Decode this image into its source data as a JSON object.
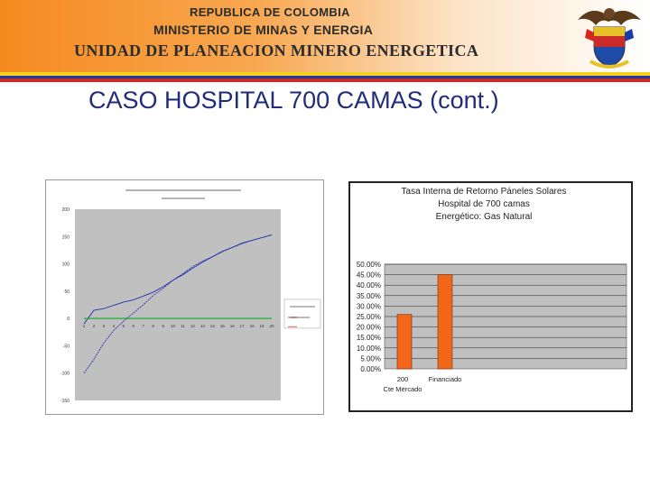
{
  "header": {
    "line1": "REPUBLICA DE COLOMBIA",
    "line2": "MINISTERIO DE MINAS Y ENERGIA",
    "line3": "UNIDAD DE PLANEACION MINERO ENERGETICA",
    "colors": {
      "band_orange": "#f58a1f",
      "stripe_yellow": "#f2d21a",
      "stripe_blue": "#1c3aa6",
      "stripe_red": "#d6271e"
    },
    "crest_icon": "colombia-coat-of-arms-icon"
  },
  "slide_title": "CASO HOSPITAL 700 CAMAS (cont.)",
  "chart_data": [
    {
      "type": "line",
      "title": "",
      "ylabel": "",
      "xlabel": "",
      "x": [
        1,
        2,
        3,
        4,
        5,
        6,
        7,
        8,
        9,
        10,
        11,
        12,
        13,
        14,
        15,
        16,
        17,
        18,
        19,
        20
      ],
      "ylim": [
        -150,
        200
      ],
      "yticks": [
        -150,
        -100,
        -50,
        0,
        50,
        100,
        150,
        200
      ],
      "ytick_labels": [
        "-150",
        "-100",
        "-50",
        "0",
        "50",
        "100",
        "150",
        "200"
      ],
      "series": [
        {
          "name": "",
          "color": "#2233aa",
          "values": [
            -100,
            -75,
            -45,
            -22,
            -5,
            10,
            25,
            42,
            55,
            70,
            82,
            95,
            105,
            113,
            122,
            130,
            137,
            143,
            148,
            153
          ]
        },
        {
          "name": "",
          "color": "#2233aa",
          "values": [
            -10,
            15,
            18,
            24,
            30,
            34,
            41,
            48,
            58,
            70,
            80,
            92,
            103,
            113,
            123,
            130,
            138,
            143,
            148,
            153
          ]
        },
        {
          "name": "",
          "color": "#22aa33",
          "values": [
            0,
            0,
            0,
            0,
            0,
            0,
            0,
            0,
            0,
            0,
            0,
            0,
            0,
            0,
            0,
            0,
            0,
            0,
            0,
            0
          ]
        }
      ],
      "grid": false,
      "legend_placement": "right",
      "plot_background": "#c0c0c0"
    },
    {
      "type": "bar",
      "title_lines": [
        "Tasa Interna de Retorno Páneles Solares",
        "Hospital de 700 camas",
        "Energético: Gas Natural"
      ],
      "categories": [
        "Cte Mercado",
        "Financiado"
      ],
      "category_label_lines": [
        [
          "200",
          "Cte Mercado"
        ],
        [
          "Financiado"
        ]
      ],
      "values": [
        0.26,
        0.45
      ],
      "ylim": [
        0,
        0.5
      ],
      "yticks": [
        0,
        0.05,
        0.1,
        0.15,
        0.2,
        0.25,
        0.3,
        0.35,
        0.4,
        0.45,
        0.5
      ],
      "ytick_labels": [
        "0.00%",
        "5.00%",
        "10.00%",
        "15.00%",
        "20.00%",
        "25.00%",
        "30.00%",
        "35.00%",
        "40.00%",
        "45.00%",
        "50.00%"
      ],
      "bar_color": "#f2661a",
      "plot_background": "#c0c0c0",
      "grid": true
    }
  ]
}
